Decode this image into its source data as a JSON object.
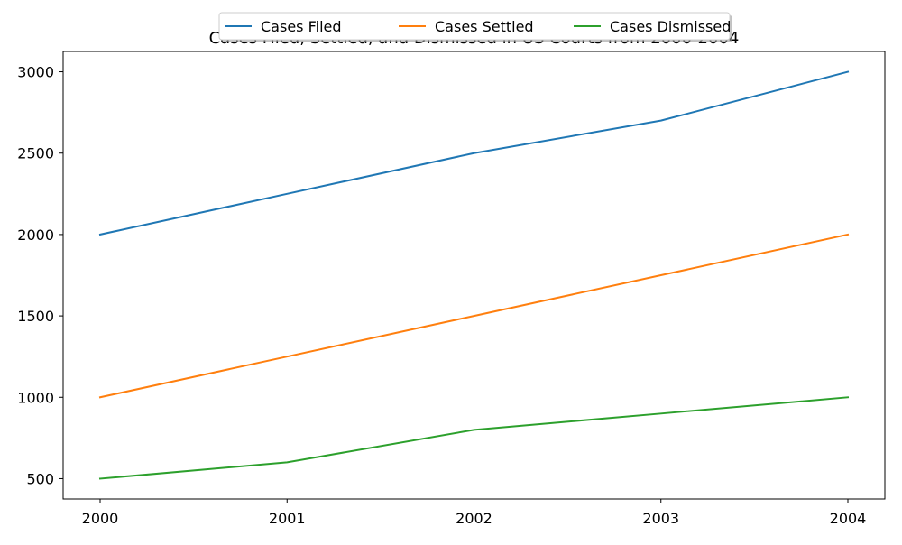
{
  "chart_data": {
    "type": "line",
    "title": "Cases Filed, Settled, and Dismissed in US Courts from 2000-2004",
    "xlabel": "",
    "ylabel": "",
    "x": [
      "2000",
      "2001",
      "2002",
      "2003",
      "2004"
    ],
    "series": [
      {
        "name": "Cases Filed",
        "color": "#1f77b4",
        "values": [
          2000,
          2250,
          2500,
          2700,
          3000
        ]
      },
      {
        "name": "Cases Settled",
        "color": "#ff7f0e",
        "values": [
          1000,
          1250,
          1500,
          1750,
          2000
        ]
      },
      {
        "name": "Cases Dismissed",
        "color": "#2ca02c",
        "values": [
          500,
          600,
          800,
          900,
          1000
        ]
      }
    ],
    "yticks": [
      500,
      1000,
      1500,
      2000,
      2500,
      3000
    ],
    "ylim": [
      375,
      3125
    ],
    "grid": false,
    "legend": "top-center"
  }
}
